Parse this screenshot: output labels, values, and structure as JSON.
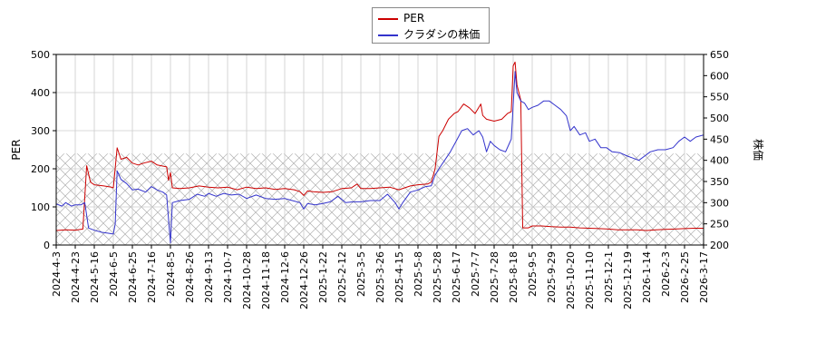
{
  "chart_data": {
    "type": "line",
    "title": "",
    "xlabel": "",
    "ylabel": "PER",
    "ylabel_right": "株価",
    "ylim": [
      0,
      500
    ],
    "ylim_right": [
      200,
      650
    ],
    "yticks": [
      0,
      100,
      200,
      300,
      400,
      500
    ],
    "yticks_right": [
      200,
      250,
      300,
      350,
      400,
      450,
      500,
      550,
      600,
      650
    ],
    "grid": true,
    "legend_position": "top-center",
    "band": {
      "from": 0,
      "to": 240,
      "pattern": "crosshatch"
    },
    "x_ticks": [
      "2024-4-3",
      "2024-4-23",
      "2024-5-16",
      "2024-6-5",
      "2024-6-25",
      "2024-7-16",
      "2024-8-5",
      "2024-8-26",
      "2024-9-13",
      "2024-10-7",
      "2024-10-28",
      "2024-11-18",
      "2024-12-6",
      "2024-12-26",
      "2025-1-22",
      "2025-2-12",
      "2025-3-5",
      "2025-3-26",
      "2025-4-15",
      "2025-5-8",
      "2025-5-28",
      "2025-6-17",
      "2025-7-7",
      "2025-7-28",
      "2025-8-18",
      "2025-9-5",
      "2025-9-29",
      "2025-10-20",
      "2025-11-10",
      "2025-12-1",
      "2025-12-19",
      "2026-1-14",
      "2026-2-3",
      "2026-2-25",
      "2026-3-17"
    ],
    "series": [
      {
        "name": "PER",
        "color": "#cc0000",
        "axis": "left",
        "points": [
          [
            0,
            38
          ],
          [
            0.5,
            40
          ],
          [
            1,
            39
          ],
          [
            1.4,
            42
          ],
          [
            1.6,
            208
          ],
          [
            1.8,
            165
          ],
          [
            2,
            158
          ],
          [
            2.5,
            155
          ],
          [
            2.9,
            152
          ],
          [
            3.0,
            150
          ],
          [
            3.2,
            255
          ],
          [
            3.4,
            225
          ],
          [
            3.7,
            230
          ],
          [
            4.0,
            215
          ],
          [
            4.3,
            210
          ],
          [
            4.6,
            215
          ],
          [
            5.0,
            220
          ],
          [
            5.3,
            210
          ],
          [
            5.8,
            205
          ],
          [
            5.9,
            170
          ],
          [
            6.0,
            190
          ],
          [
            6.1,
            150
          ],
          [
            6.5,
            148
          ],
          [
            7.0,
            150
          ],
          [
            7.5,
            155
          ],
          [
            8.0,
            152
          ],
          [
            8.5,
            150
          ],
          [
            9.0,
            152
          ],
          [
            9.5,
            145
          ],
          [
            10.0,
            152
          ],
          [
            10.5,
            148
          ],
          [
            11.0,
            150
          ],
          [
            11.5,
            146
          ],
          [
            12.0,
            148
          ],
          [
            12.5,
            145
          ],
          [
            12.8,
            140
          ],
          [
            13.0,
            130
          ],
          [
            13.2,
            142
          ],
          [
            13.5,
            140
          ],
          [
            14.0,
            138
          ],
          [
            14.5,
            140
          ],
          [
            15.0,
            148
          ],
          [
            15.5,
            150
          ],
          [
            15.8,
            160
          ],
          [
            16.0,
            148
          ],
          [
            16.5,
            148
          ],
          [
            17.0,
            150
          ],
          [
            17.5,
            152
          ],
          [
            18.0,
            145
          ],
          [
            18.3,
            150
          ],
          [
            18.6,
            155
          ],
          [
            19.0,
            158
          ],
          [
            19.5,
            160
          ],
          [
            19.7,
            165
          ],
          [
            19.9,
            200
          ],
          [
            20.1,
            285
          ],
          [
            20.3,
            300
          ],
          [
            20.6,
            330
          ],
          [
            20.9,
            345
          ],
          [
            21.1,
            350
          ],
          [
            21.4,
            370
          ],
          [
            21.7,
            360
          ],
          [
            22.0,
            345
          ],
          [
            22.3,
            370
          ],
          [
            22.4,
            340
          ],
          [
            22.6,
            330
          ],
          [
            23.0,
            325
          ],
          [
            23.4,
            330
          ],
          [
            23.7,
            345
          ],
          [
            23.9,
            350
          ],
          [
            24.0,
            470
          ],
          [
            24.1,
            480
          ],
          [
            24.2,
            420
          ],
          [
            24.4,
            380
          ],
          [
            24.5,
            45
          ],
          [
            24.8,
            45
          ],
          [
            25.0,
            50
          ],
          [
            25.5,
            50
          ],
          [
            26.0,
            48
          ],
          [
            26.5,
            47
          ],
          [
            27.0,
            47
          ],
          [
            27.5,
            45
          ],
          [
            28.0,
            44
          ],
          [
            28.5,
            43
          ],
          [
            29.0,
            42
          ],
          [
            29.5,
            40
          ],
          [
            30.0,
            40
          ],
          [
            30.5,
            40
          ],
          [
            31.0,
            38
          ],
          [
            31.5,
            40
          ],
          [
            32.0,
            41
          ],
          [
            32.5,
            42
          ],
          [
            33.0,
            43
          ],
          [
            33.5,
            44
          ],
          [
            34.0,
            44
          ],
          [
            34.5,
            45
          ],
          [
            34.9,
            46
          ]
        ]
      },
      {
        "name": "クラダシの株価",
        "color": "#3333cc",
        "axis": "right",
        "points": [
          [
            0,
            297
          ],
          [
            0.3,
            292
          ],
          [
            0.5,
            300
          ],
          [
            0.8,
            292
          ],
          [
            1.0,
            295
          ],
          [
            1.3,
            295
          ],
          [
            1.5,
            300
          ],
          [
            1.7,
            240
          ],
          [
            2.0,
            235
          ],
          [
            2.4,
            230
          ],
          [
            2.7,
            228
          ],
          [
            3.0,
            226
          ],
          [
            3.1,
            250
          ],
          [
            3.2,
            375
          ],
          [
            3.4,
            355
          ],
          [
            3.7,
            345
          ],
          [
            4.0,
            330
          ],
          [
            4.3,
            332
          ],
          [
            4.7,
            325
          ],
          [
            5.0,
            338
          ],
          [
            5.3,
            330
          ],
          [
            5.6,
            325
          ],
          [
            5.8,
            318
          ],
          [
            5.9,
            260
          ],
          [
            6.0,
            205
          ],
          [
            6.1,
            300
          ],
          [
            6.5,
            305
          ],
          [
            7.0,
            308
          ],
          [
            7.4,
            320
          ],
          [
            7.8,
            315
          ],
          [
            8.0,
            322
          ],
          [
            8.4,
            315
          ],
          [
            8.8,
            322
          ],
          [
            9.2,
            318
          ],
          [
            9.6,
            320
          ],
          [
            10.0,
            310
          ],
          [
            10.5,
            318
          ],
          [
            11.0,
            310
          ],
          [
            11.5,
            308
          ],
          [
            12.0,
            310
          ],
          [
            12.4,
            305
          ],
          [
            12.8,
            300
          ],
          [
            13.0,
            285
          ],
          [
            13.2,
            298
          ],
          [
            13.6,
            295
          ],
          [
            14.0,
            298
          ],
          [
            14.4,
            302
          ],
          [
            14.8,
            315
          ],
          [
            15.2,
            300
          ],
          [
            15.6,
            302
          ],
          [
            16.0,
            302
          ],
          [
            16.5,
            305
          ],
          [
            17.0,
            305
          ],
          [
            17.4,
            320
          ],
          [
            17.8,
            300
          ],
          [
            18.0,
            285
          ],
          [
            18.2,
            300
          ],
          [
            18.6,
            325
          ],
          [
            19.0,
            330
          ],
          [
            19.4,
            338
          ],
          [
            19.7,
            340
          ],
          [
            19.9,
            365
          ],
          [
            20.1,
            380
          ],
          [
            20.4,
            400
          ],
          [
            20.7,
            420
          ],
          [
            21.0,
            445
          ],
          [
            21.3,
            470
          ],
          [
            21.6,
            475
          ],
          [
            21.9,
            460
          ],
          [
            22.2,
            470
          ],
          [
            22.4,
            455
          ],
          [
            22.6,
            420
          ],
          [
            22.8,
            445
          ],
          [
            23.0,
            435
          ],
          [
            23.3,
            425
          ],
          [
            23.6,
            420
          ],
          [
            23.8,
            440
          ],
          [
            23.9,
            450
          ],
          [
            24.1,
            610
          ],
          [
            24.2,
            560
          ],
          [
            24.4,
            540
          ],
          [
            24.6,
            535
          ],
          [
            24.8,
            520
          ],
          [
            25.0,
            525
          ],
          [
            25.3,
            530
          ],
          [
            25.6,
            540
          ],
          [
            25.9,
            540
          ],
          [
            26.2,
            530
          ],
          [
            26.5,
            520
          ],
          [
            26.8,
            505
          ],
          [
            27.0,
            470
          ],
          [
            27.2,
            480
          ],
          [
            27.5,
            460
          ],
          [
            27.8,
            465
          ],
          [
            28.0,
            445
          ],
          [
            28.3,
            450
          ],
          [
            28.6,
            430
          ],
          [
            28.9,
            430
          ],
          [
            29.2,
            420
          ],
          [
            29.6,
            418
          ],
          [
            30.0,
            410
          ],
          [
            30.3,
            405
          ],
          [
            30.6,
            400
          ],
          [
            30.9,
            410
          ],
          [
            31.2,
            420
          ],
          [
            31.6,
            425
          ],
          [
            32.0,
            425
          ],
          [
            32.4,
            430
          ],
          [
            32.7,
            445
          ],
          [
            33.0,
            455
          ],
          [
            33.3,
            445
          ],
          [
            33.6,
            455
          ],
          [
            34.0,
            460
          ],
          [
            34.3,
            470
          ],
          [
            34.6,
            450
          ],
          [
            34.9,
            465
          ]
        ]
      }
    ]
  }
}
